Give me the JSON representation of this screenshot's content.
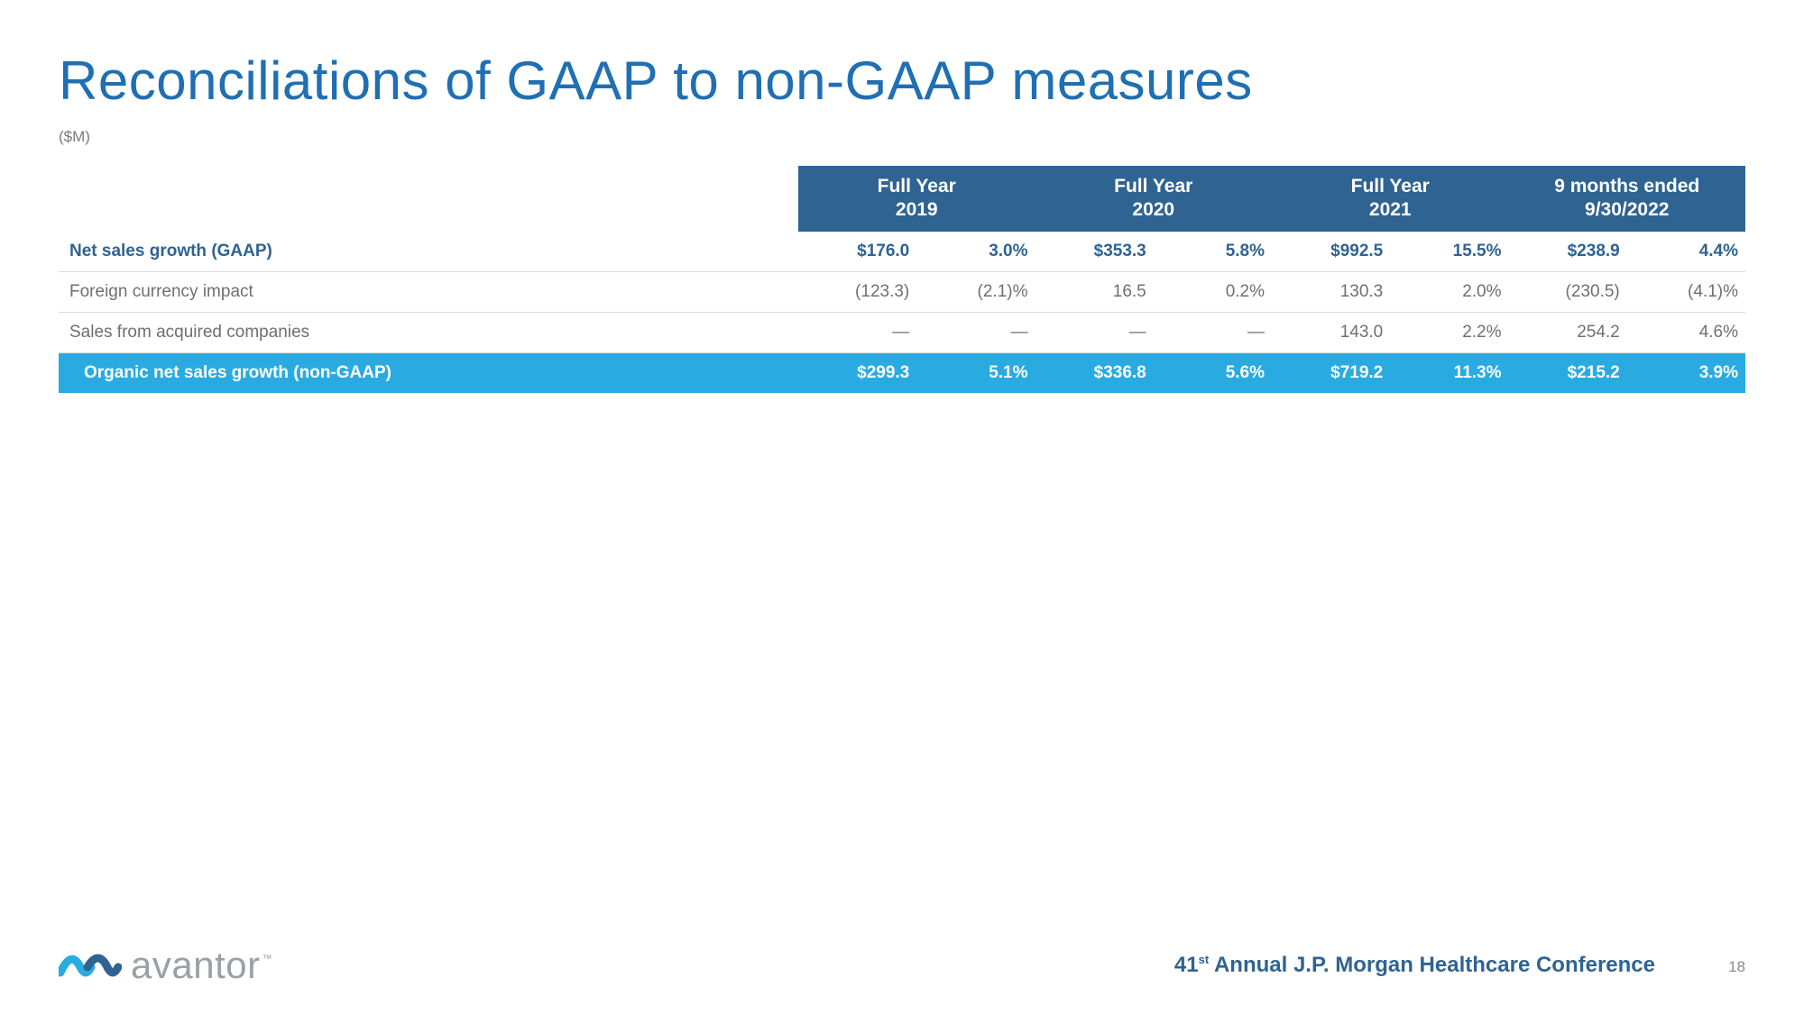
{
  "title": "Reconciliations of GAAP to non-GAAP measures",
  "unit_label": "($M)",
  "columns": [
    {
      "line1": "Full Year",
      "line2": "2019"
    },
    {
      "line1": "Full Year",
      "line2": "2020"
    },
    {
      "line1": "Full Year",
      "line2": "2021"
    },
    {
      "line1": "9 months ended",
      "line2": "9/30/2022"
    }
  ],
  "rows": [
    {
      "label": "Net sales growth (GAAP)",
      "style": "bold",
      "cells": [
        "$176.0",
        "3.0%",
        "$353.3",
        "5.8%",
        "$992.5",
        "15.5%",
        "$238.9",
        "4.4%"
      ]
    },
    {
      "label": "Foreign currency impact",
      "style": "normal",
      "cells": [
        "(123.3)",
        "(2.1)%",
        "16.5",
        "0.2%",
        "130.3",
        "2.0%",
        "(230.5)",
        "(4.1)%"
      ]
    },
    {
      "label": "Sales from acquired companies",
      "style": "normal",
      "cells": [
        "—",
        "—",
        "—",
        "—",
        "143.0",
        "2.2%",
        "254.2",
        "4.6%"
      ]
    },
    {
      "label": "Organic net sales growth (non-GAAP)",
      "style": "highlight",
      "cells": [
        "$299.3",
        "5.1%",
        "$336.8",
        "5.6%",
        "$719.2",
        "11.3%",
        "$215.2",
        "3.9%"
      ]
    }
  ],
  "brand": {
    "name": "avantor",
    "tm": "™",
    "mark_color_left": "#29abe2",
    "mark_color_right": "#2f6392"
  },
  "conference": {
    "number": "41",
    "ordinal": "st",
    "rest": " Annual J.P. Morgan Healthcare Conference"
  },
  "page_number": "18",
  "colors": {
    "title": "#1f6fb2",
    "header_bg": "#2f6392",
    "highlight_bg": "#29abe2",
    "border": "#d9d9d9",
    "muted_text": "#6f6f6f"
  }
}
